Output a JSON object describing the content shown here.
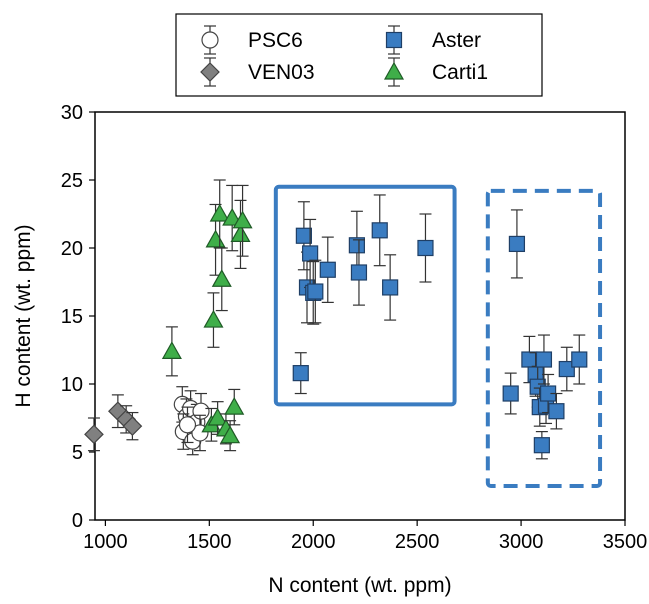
{
  "chart_data": {
    "type": "scatter",
    "xlabel": "N content (wt. ppm)",
    "ylabel": "H content (wt. ppm)",
    "xlim": [
      950,
      3500
    ],
    "ylim": [
      0,
      30
    ],
    "xticks": [
      1000,
      1500,
      2000,
      2500,
      3000,
      3500
    ],
    "yticks": [
      0,
      5,
      10,
      15,
      20,
      25,
      30
    ],
    "grid": false,
    "legend_position": "top-center",
    "series": [
      {
        "name": "PSC6",
        "marker": "circle",
        "fill": "#ffffff",
        "stroke": "#444444",
        "points": [
          {
            "x": 1370,
            "y": 8.5,
            "err": 1.3
          },
          {
            "x": 1390,
            "y": 7.6,
            "err": 1.3
          },
          {
            "x": 1410,
            "y": 8.2,
            "err": 1.3
          },
          {
            "x": 1440,
            "y": 7.2,
            "err": 1.3
          },
          {
            "x": 1375,
            "y": 6.5,
            "err": 1.3
          },
          {
            "x": 1420,
            "y": 5.8,
            "err": 1.0
          },
          {
            "x": 1460,
            "y": 8.0,
            "err": 1.3
          },
          {
            "x": 1455,
            "y": 6.4,
            "err": 1.3
          },
          {
            "x": 1395,
            "y": 7.0,
            "err": 1.3
          }
        ]
      },
      {
        "name": "VEN03",
        "marker": "diamond",
        "fill": "#808080",
        "stroke": "#444444",
        "points": [
          {
            "x": 945,
            "y": 6.3,
            "err": 1.2
          },
          {
            "x": 1060,
            "y": 8.0,
            "err": 1.2
          },
          {
            "x": 1100,
            "y": 7.4,
            "err": 1.0
          },
          {
            "x": 1130,
            "y": 6.9,
            "err": 1.0
          }
        ]
      },
      {
        "name": "Aster",
        "marker": "square",
        "fill": "#3a7cc1",
        "stroke": "#1f3f66",
        "points": [
          {
            "x": 1940,
            "y": 10.8,
            "err": 1.5
          },
          {
            "x": 1955,
            "y": 20.9,
            "err": 2.5
          },
          {
            "x": 1970,
            "y": 17.1,
            "err": 2.6
          },
          {
            "x": 1985,
            "y": 19.6,
            "err": 2.5
          },
          {
            "x": 2000,
            "y": 16.7,
            "err": 2.3
          },
          {
            "x": 2010,
            "y": 16.8,
            "err": 2.3
          },
          {
            "x": 2070,
            "y": 18.4,
            "err": 2.4
          },
          {
            "x": 2210,
            "y": 20.2,
            "err": 2.5
          },
          {
            "x": 2220,
            "y": 18.2,
            "err": 2.4
          },
          {
            "x": 2320,
            "y": 21.3,
            "err": 2.6
          },
          {
            "x": 2370,
            "y": 17.1,
            "err": 2.4
          },
          {
            "x": 2540,
            "y": 20.0,
            "err": 2.5
          },
          {
            "x": 2950,
            "y": 9.3,
            "err": 1.5
          },
          {
            "x": 2980,
            "y": 20.3,
            "err": 2.5
          },
          {
            "x": 3040,
            "y": 11.8,
            "err": 1.7
          },
          {
            "x": 3070,
            "y": 10.7,
            "err": 1.6
          },
          {
            "x": 3080,
            "y": 9.8,
            "err": 1.5
          },
          {
            "x": 3090,
            "y": 8.3,
            "err": 1.4
          },
          {
            "x": 3100,
            "y": 5.5,
            "err": 1.0
          },
          {
            "x": 3110,
            "y": 11.8,
            "err": 1.8
          },
          {
            "x": 3120,
            "y": 8.4,
            "err": 1.3
          },
          {
            "x": 3130,
            "y": 9.3,
            "err": 1.4
          },
          {
            "x": 3170,
            "y": 8.0,
            "err": 1.3
          },
          {
            "x": 3220,
            "y": 11.1,
            "err": 1.6
          },
          {
            "x": 3280,
            "y": 11.8,
            "err": 1.8
          }
        ]
      },
      {
        "name": "Carti1",
        "marker": "triangle",
        "fill": "#3fae49",
        "stroke": "#1f5a26",
        "points": [
          {
            "x": 1320,
            "y": 12.4,
            "err": 1.8
          },
          {
            "x": 1520,
            "y": 14.7,
            "err": 2.0
          },
          {
            "x": 1530,
            "y": 20.6,
            "err": 2.6
          },
          {
            "x": 1550,
            "y": 22.5,
            "err": 2.5
          },
          {
            "x": 1560,
            "y": 17.7,
            "err": 2.3
          },
          {
            "x": 1610,
            "y": 22.2,
            "err": 2.4
          },
          {
            "x": 1650,
            "y": 21.0,
            "err": 2.5
          },
          {
            "x": 1660,
            "y": 22.0,
            "err": 2.6
          },
          {
            "x": 1510,
            "y": 7.0,
            "err": 1.2
          },
          {
            "x": 1540,
            "y": 7.5,
            "err": 1.2
          },
          {
            "x": 1580,
            "y": 6.7,
            "err": 1.1
          },
          {
            "x": 1600,
            "y": 6.2,
            "err": 1.1
          },
          {
            "x": 1620,
            "y": 8.3,
            "err": 1.3
          }
        ]
      }
    ],
    "boxes": [
      {
        "name": "solid-box",
        "x": [
          1820,
          2680
        ],
        "y": [
          8.5,
          24.5
        ],
        "style": "solid",
        "color": "#3a7cc1"
      },
      {
        "name": "dashed-box",
        "x": [
          2840,
          3380
        ],
        "y": [
          2.5,
          24.2
        ],
        "style": "dashed",
        "color": "#3a7cc1"
      }
    ]
  }
}
